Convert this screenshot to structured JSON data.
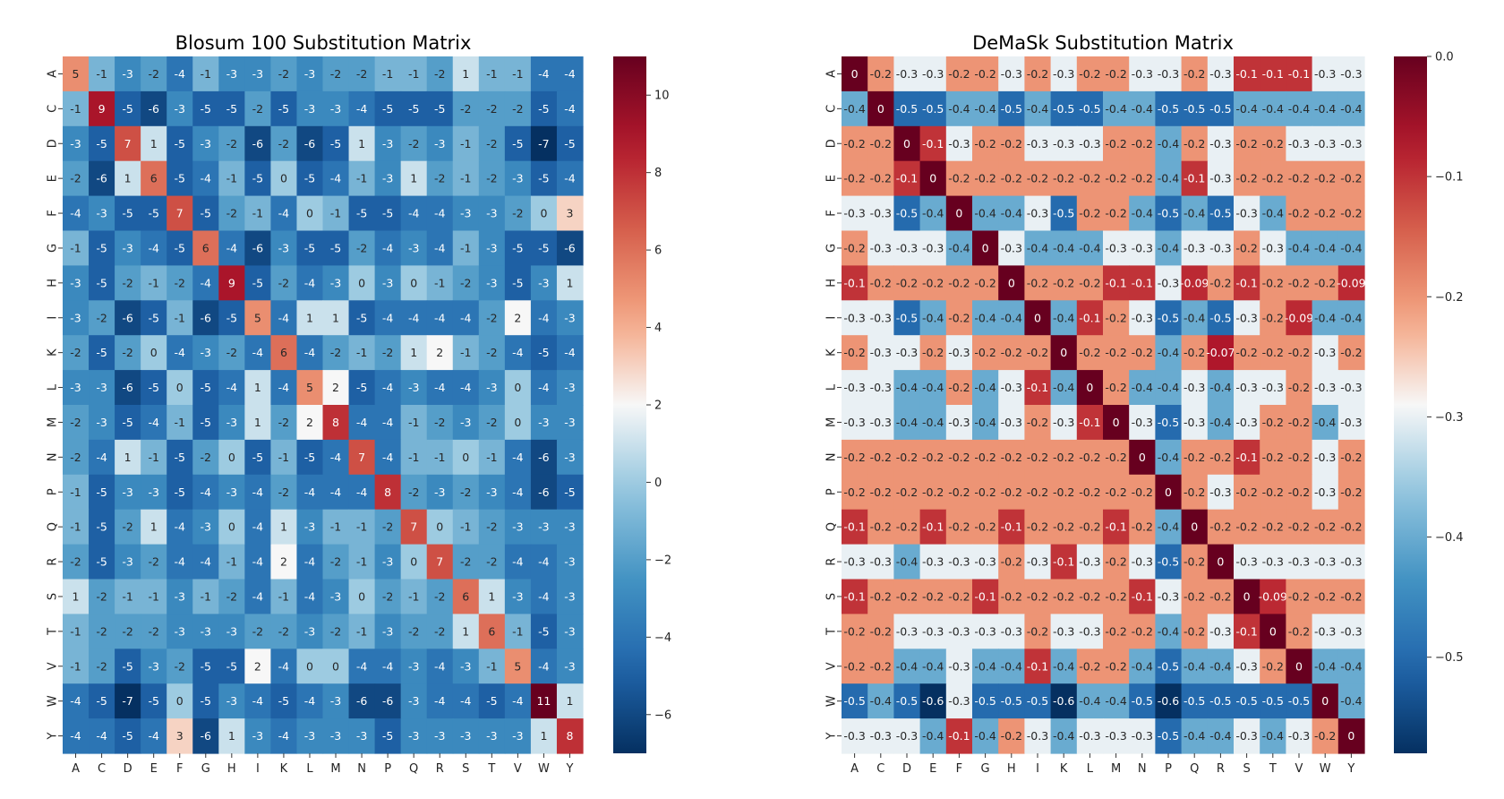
{
  "chart_data": [
    {
      "type": "heatmap",
      "title": "Blosum 100 Substitution Matrix",
      "xlabels": [
        "A",
        "C",
        "D",
        "E",
        "F",
        "G",
        "H",
        "I",
        "K",
        "L",
        "M",
        "N",
        "P",
        "Q",
        "R",
        "S",
        "T",
        "V",
        "W",
        "Y"
      ],
      "ylabels": [
        "A",
        "C",
        "D",
        "E",
        "F",
        "G",
        "H",
        "I",
        "K",
        "L",
        "M",
        "N",
        "P",
        "Q",
        "R",
        "S",
        "T",
        "V",
        "W",
        "Y"
      ],
      "vmin": -7,
      "vmax": 11,
      "colorbar_ticks": [
        10,
        8,
        6,
        4,
        2,
        0,
        -2,
        -4,
        -6
      ],
      "colorbar_tick_labels": [
        "10",
        "8",
        "6",
        "4",
        "2",
        "0",
        "−2",
        "−4",
        "−6"
      ],
      "colormap": "RdBu_r",
      "values": [
        [
          5,
          -1,
          -3,
          -2,
          -4,
          -1,
          -3,
          -3,
          -2,
          -3,
          -2,
          -2,
          -1,
          -1,
          -2,
          1,
          -1,
          -1,
          -4,
          -4
        ],
        [
          -1,
          9,
          -5,
          -6,
          -3,
          -5,
          -5,
          -2,
          -5,
          -3,
          -3,
          -4,
          -5,
          -5,
          -5,
          -2,
          -2,
          -2,
          -5,
          -4
        ],
        [
          -3,
          -5,
          7,
          1,
          -5,
          -3,
          -2,
          -6,
          -2,
          -6,
          -5,
          1,
          -3,
          -2,
          -3,
          -1,
          -2,
          -5,
          -7,
          -5
        ],
        [
          -2,
          -6,
          1,
          6,
          -5,
          -4,
          -1,
          -5,
          0,
          -5,
          -4,
          -1,
          -3,
          1,
          -2,
          -1,
          -2,
          -3,
          -5,
          -4
        ],
        [
          -4,
          -3,
          -5,
          -5,
          7,
          -5,
          -2,
          -1,
          -4,
          0,
          -1,
          -5,
          -5,
          -4,
          -4,
          -3,
          -3,
          -2,
          0,
          3
        ],
        [
          -1,
          -5,
          -3,
          -4,
          -5,
          6,
          -4,
          -6,
          -3,
          -5,
          -5,
          -2,
          -4,
          -3,
          -4,
          -1,
          -3,
          -5,
          -5,
          -6
        ],
        [
          -3,
          -5,
          -2,
          -1,
          -2,
          -4,
          9,
          -5,
          -2,
          -4,
          -3,
          0,
          -3,
          0,
          -1,
          -2,
          -3,
          -5,
          -3,
          1
        ],
        [
          -3,
          -2,
          -6,
          -5,
          -1,
          -6,
          -5,
          5,
          -4,
          1,
          1,
          -5,
          -4,
          -4,
          -4,
          -4,
          -2,
          2,
          -4,
          -3
        ],
        [
          -2,
          -5,
          -2,
          0,
          -4,
          -3,
          -2,
          -4,
          6,
          -4,
          -2,
          -1,
          -2,
          1,
          2,
          -1,
          -2,
          -4,
          -5,
          -4
        ],
        [
          -3,
          -3,
          -6,
          -5,
          0,
          -5,
          -4,
          1,
          -4,
          5,
          2,
          -5,
          -4,
          -3,
          -4,
          -4,
          -3,
          0,
          -4,
          -3
        ],
        [
          -2,
          -3,
          -5,
          -4,
          -1,
          -5,
          -3,
          1,
          -2,
          2,
          8,
          -4,
          -4,
          -1,
          -2,
          -3,
          -2,
          0,
          -3,
          -3
        ],
        [
          -2,
          -4,
          1,
          -1,
          -5,
          -2,
          0,
          -5,
          -1,
          -5,
          -4,
          7,
          -4,
          -1,
          -1,
          0,
          -1,
          -4,
          -6,
          -3
        ],
        [
          -1,
          -5,
          -3,
          -3,
          -5,
          -4,
          -3,
          -4,
          -2,
          -4,
          -4,
          -4,
          8,
          -2,
          -3,
          -2,
          -3,
          -4,
          -6,
          -5
        ],
        [
          -1,
          -5,
          -2,
          1,
          -4,
          -3,
          0,
          -4,
          1,
          -3,
          -1,
          -1,
          -2,
          7,
          0,
          -1,
          -2,
          -3,
          -3,
          -3
        ],
        [
          -2,
          -5,
          -3,
          -2,
          -4,
          -4,
          -1,
          -4,
          2,
          -4,
          -2,
          -1,
          -3,
          0,
          7,
          -2,
          -2,
          -4,
          -4,
          -3
        ],
        [
          1,
          -2,
          -1,
          -1,
          -3,
          -1,
          -2,
          -4,
          -1,
          -4,
          -3,
          0,
          -2,
          -1,
          -2,
          6,
          1,
          -3,
          -4,
          -3
        ],
        [
          -1,
          -2,
          -2,
          -2,
          -3,
          -3,
          -3,
          -2,
          -2,
          -3,
          -2,
          -1,
          -3,
          -2,
          -2,
          1,
          6,
          -1,
          -5,
          -3
        ],
        [
          -1,
          -2,
          -5,
          -3,
          -2,
          -5,
          -5,
          2,
          -4,
          0,
          0,
          -4,
          -4,
          -3,
          -4,
          -3,
          -1,
          5,
          -4,
          -3
        ],
        [
          -4,
          -5,
          -7,
          -5,
          0,
          -5,
          -3,
          -4,
          -5,
          -4,
          -3,
          -6,
          -6,
          -3,
          -4,
          -4,
          -5,
          -4,
          11,
          1
        ],
        [
          -4,
          -4,
          -5,
          -4,
          3,
          -6,
          1,
          -3,
          -4,
          -3,
          -3,
          -3,
          -5,
          -3,
          -3,
          -3,
          -3,
          -3,
          1,
          8
        ]
      ]
    },
    {
      "type": "heatmap",
      "title": "DeMaSk Substitution Matrix",
      "xlabels": [
        "A",
        "C",
        "D",
        "E",
        "F",
        "G",
        "H",
        "I",
        "K",
        "L",
        "M",
        "N",
        "P",
        "Q",
        "R",
        "S",
        "T",
        "V",
        "W",
        "Y"
      ],
      "ylabels": [
        "A",
        "C",
        "D",
        "E",
        "F",
        "G",
        "H",
        "I",
        "K",
        "L",
        "M",
        "N",
        "P",
        "Q",
        "R",
        "S",
        "T",
        "V",
        "W",
        "Y"
      ],
      "vmin": -0.58,
      "vmax": 0.0,
      "colorbar_ticks": [
        0.0,
        -0.1,
        -0.2,
        -0.3,
        -0.4,
        -0.5
      ],
      "colorbar_tick_labels": [
        "0.0",
        "−0.1",
        "−0.2",
        "−0.3",
        "−0.4",
        "−0.5"
      ],
      "colormap": "RdBu_r",
      "values": [
        [
          0,
          -0.2,
          -0.3,
          -0.3,
          -0.2,
          -0.2,
          -0.3,
          -0.2,
          -0.3,
          -0.2,
          -0.2,
          -0.3,
          -0.3,
          -0.2,
          -0.3,
          -0.1,
          -0.1,
          -0.1,
          -0.3,
          -0.3
        ],
        [
          -0.4,
          0,
          -0.5,
          -0.5,
          -0.4,
          -0.4,
          -0.5,
          -0.4,
          -0.5,
          -0.5,
          -0.4,
          -0.4,
          -0.5,
          -0.5,
          -0.5,
          -0.4,
          -0.4,
          -0.4,
          -0.4,
          -0.4
        ],
        [
          -0.2,
          -0.2,
          0,
          -0.1,
          -0.3,
          -0.2,
          -0.2,
          -0.3,
          -0.3,
          -0.3,
          -0.2,
          -0.2,
          -0.4,
          -0.2,
          -0.3,
          -0.2,
          -0.2,
          -0.3,
          -0.3,
          -0.3
        ],
        [
          -0.2,
          -0.2,
          -0.1,
          0,
          -0.2,
          -0.2,
          -0.2,
          -0.2,
          -0.2,
          -0.2,
          -0.2,
          -0.2,
          -0.4,
          -0.1,
          -0.3,
          -0.2,
          -0.2,
          -0.2,
          -0.2,
          -0.2
        ],
        [
          -0.3,
          -0.3,
          -0.5,
          -0.4,
          0,
          -0.4,
          -0.4,
          -0.3,
          -0.5,
          -0.2,
          -0.2,
          -0.4,
          -0.5,
          -0.4,
          -0.5,
          -0.3,
          -0.4,
          -0.2,
          -0.2,
          -0.2
        ],
        [
          -0.2,
          -0.3,
          -0.3,
          -0.3,
          -0.4,
          0,
          -0.3,
          -0.4,
          -0.4,
          -0.4,
          -0.3,
          -0.3,
          -0.4,
          -0.3,
          -0.3,
          -0.2,
          -0.3,
          -0.4,
          -0.4,
          -0.4
        ],
        [
          -0.1,
          -0.2,
          -0.2,
          -0.2,
          -0.2,
          -0.2,
          0,
          -0.2,
          -0.2,
          -0.2,
          -0.1,
          -0.1,
          -0.3,
          -0.09,
          -0.2,
          -0.1,
          -0.2,
          -0.2,
          -0.2,
          -0.09
        ],
        [
          -0.3,
          -0.3,
          -0.5,
          -0.4,
          -0.2,
          -0.4,
          -0.4,
          0,
          -0.4,
          -0.1,
          -0.2,
          -0.3,
          -0.5,
          -0.4,
          -0.5,
          -0.3,
          -0.2,
          -0.09,
          -0.4,
          -0.4
        ],
        [
          -0.2,
          -0.3,
          -0.3,
          -0.2,
          -0.3,
          -0.2,
          -0.2,
          -0.2,
          0,
          -0.2,
          -0.2,
          -0.2,
          -0.4,
          -0.2,
          -0.07,
          -0.2,
          -0.2,
          -0.2,
          -0.3,
          -0.2
        ],
        [
          -0.3,
          -0.3,
          -0.4,
          -0.4,
          -0.2,
          -0.4,
          -0.3,
          -0.1,
          -0.4,
          0,
          -0.2,
          -0.4,
          -0.4,
          -0.3,
          -0.4,
          -0.3,
          -0.3,
          -0.2,
          -0.3,
          -0.3
        ],
        [
          -0.3,
          -0.3,
          -0.4,
          -0.4,
          -0.3,
          -0.4,
          -0.3,
          -0.2,
          -0.3,
          -0.1,
          0,
          -0.3,
          -0.5,
          -0.3,
          -0.4,
          -0.3,
          -0.2,
          -0.2,
          -0.4,
          -0.3
        ],
        [
          -0.2,
          -0.2,
          -0.2,
          -0.2,
          -0.2,
          -0.2,
          -0.2,
          -0.2,
          -0.2,
          -0.2,
          -0.2,
          0,
          -0.4,
          -0.2,
          -0.2,
          -0.1,
          -0.2,
          -0.2,
          -0.3,
          -0.2
        ],
        [
          -0.2,
          -0.2,
          -0.2,
          -0.2,
          -0.2,
          -0.2,
          -0.2,
          -0.2,
          -0.2,
          -0.2,
          -0.2,
          -0.2,
          0,
          -0.2,
          -0.3,
          -0.2,
          -0.2,
          -0.2,
          -0.3,
          -0.2
        ],
        [
          -0.1,
          -0.2,
          -0.2,
          -0.1,
          -0.2,
          -0.2,
          -0.1,
          -0.2,
          -0.2,
          -0.2,
          -0.1,
          -0.2,
          -0.4,
          0,
          -0.2,
          -0.2,
          -0.2,
          -0.2,
          -0.2,
          -0.2
        ],
        [
          -0.3,
          -0.3,
          -0.4,
          -0.3,
          -0.3,
          -0.3,
          -0.2,
          -0.3,
          -0.1,
          -0.3,
          -0.2,
          -0.3,
          -0.5,
          -0.2,
          0,
          -0.3,
          -0.3,
          -0.3,
          -0.3,
          -0.3
        ],
        [
          -0.1,
          -0.2,
          -0.2,
          -0.2,
          -0.2,
          -0.1,
          -0.2,
          -0.2,
          -0.2,
          -0.2,
          -0.2,
          -0.1,
          -0.3,
          -0.2,
          -0.2,
          0,
          -0.09,
          -0.2,
          -0.2,
          -0.2
        ],
        [
          -0.2,
          -0.2,
          -0.3,
          -0.3,
          -0.3,
          -0.3,
          -0.3,
          -0.2,
          -0.3,
          -0.3,
          -0.2,
          -0.2,
          -0.4,
          -0.2,
          -0.3,
          -0.1,
          0,
          -0.2,
          -0.3,
          -0.3
        ],
        [
          -0.2,
          -0.2,
          -0.4,
          -0.4,
          -0.3,
          -0.4,
          -0.4,
          -0.1,
          -0.4,
          -0.2,
          -0.2,
          -0.4,
          -0.5,
          -0.4,
          -0.4,
          -0.3,
          -0.2,
          0,
          -0.4,
          -0.4
        ],
        [
          -0.5,
          -0.4,
          -0.5,
          -0.6,
          -0.3,
          -0.5,
          -0.5,
          -0.5,
          -0.6,
          -0.4,
          -0.4,
          -0.5,
          -0.6,
          -0.5,
          -0.5,
          -0.5,
          -0.5,
          -0.5,
          0,
          -0.4
        ],
        [
          -0.3,
          -0.3,
          -0.3,
          -0.4,
          -0.1,
          -0.4,
          -0.2,
          -0.3,
          -0.4,
          -0.3,
          -0.3,
          -0.3,
          -0.5,
          -0.4,
          -0.4,
          -0.3,
          -0.4,
          -0.3,
          -0.2,
          0
        ]
      ]
    }
  ]
}
